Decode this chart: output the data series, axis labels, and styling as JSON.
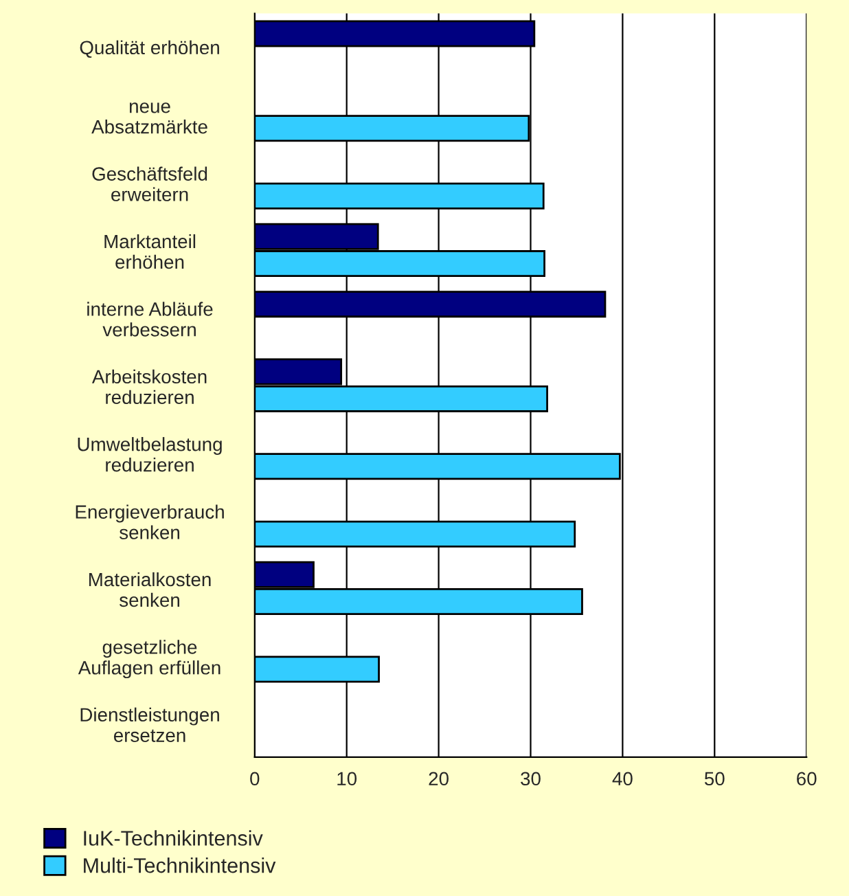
{
  "chart_data": {
    "type": "bar",
    "orientation": "horizontal",
    "categories": [
      "Qualität erhöhen",
      "neue\nAbsatzmärkte",
      "Geschäftsfeld\nerweitern",
      "Marktanteil\nerhöhen",
      "interne Abläufe\nverbessern",
      "Arbeitskosten\nreduzieren",
      "Umweltbelastung\nreduzieren",
      "Energieverbrauch\nsenken",
      "Materialkosten\nsenken",
      "gesetzliche\nAuflagen erfüllen",
      "Dienstleistungen\nersetzen"
    ],
    "series": [
      {
        "name": "IuK-Technikintensiv",
        "color": "#000080",
        "values": [
          30.4,
          null,
          null,
          13.4,
          38.1,
          9.4,
          null,
          null,
          6.4,
          null,
          null
        ]
      },
      {
        "name": "Multi-Technikintensiv",
        "color": "#33ccff",
        "values": [
          null,
          29.8,
          31.4,
          31.5,
          null,
          31.8,
          39.7,
          34.8,
          35.6,
          13.5,
          null
        ]
      }
    ],
    "xlim": [
      0,
      60
    ],
    "xticks": [
      0,
      10,
      20,
      30,
      40,
      50,
      60
    ],
    "grid": "x",
    "legend": "bottom"
  }
}
